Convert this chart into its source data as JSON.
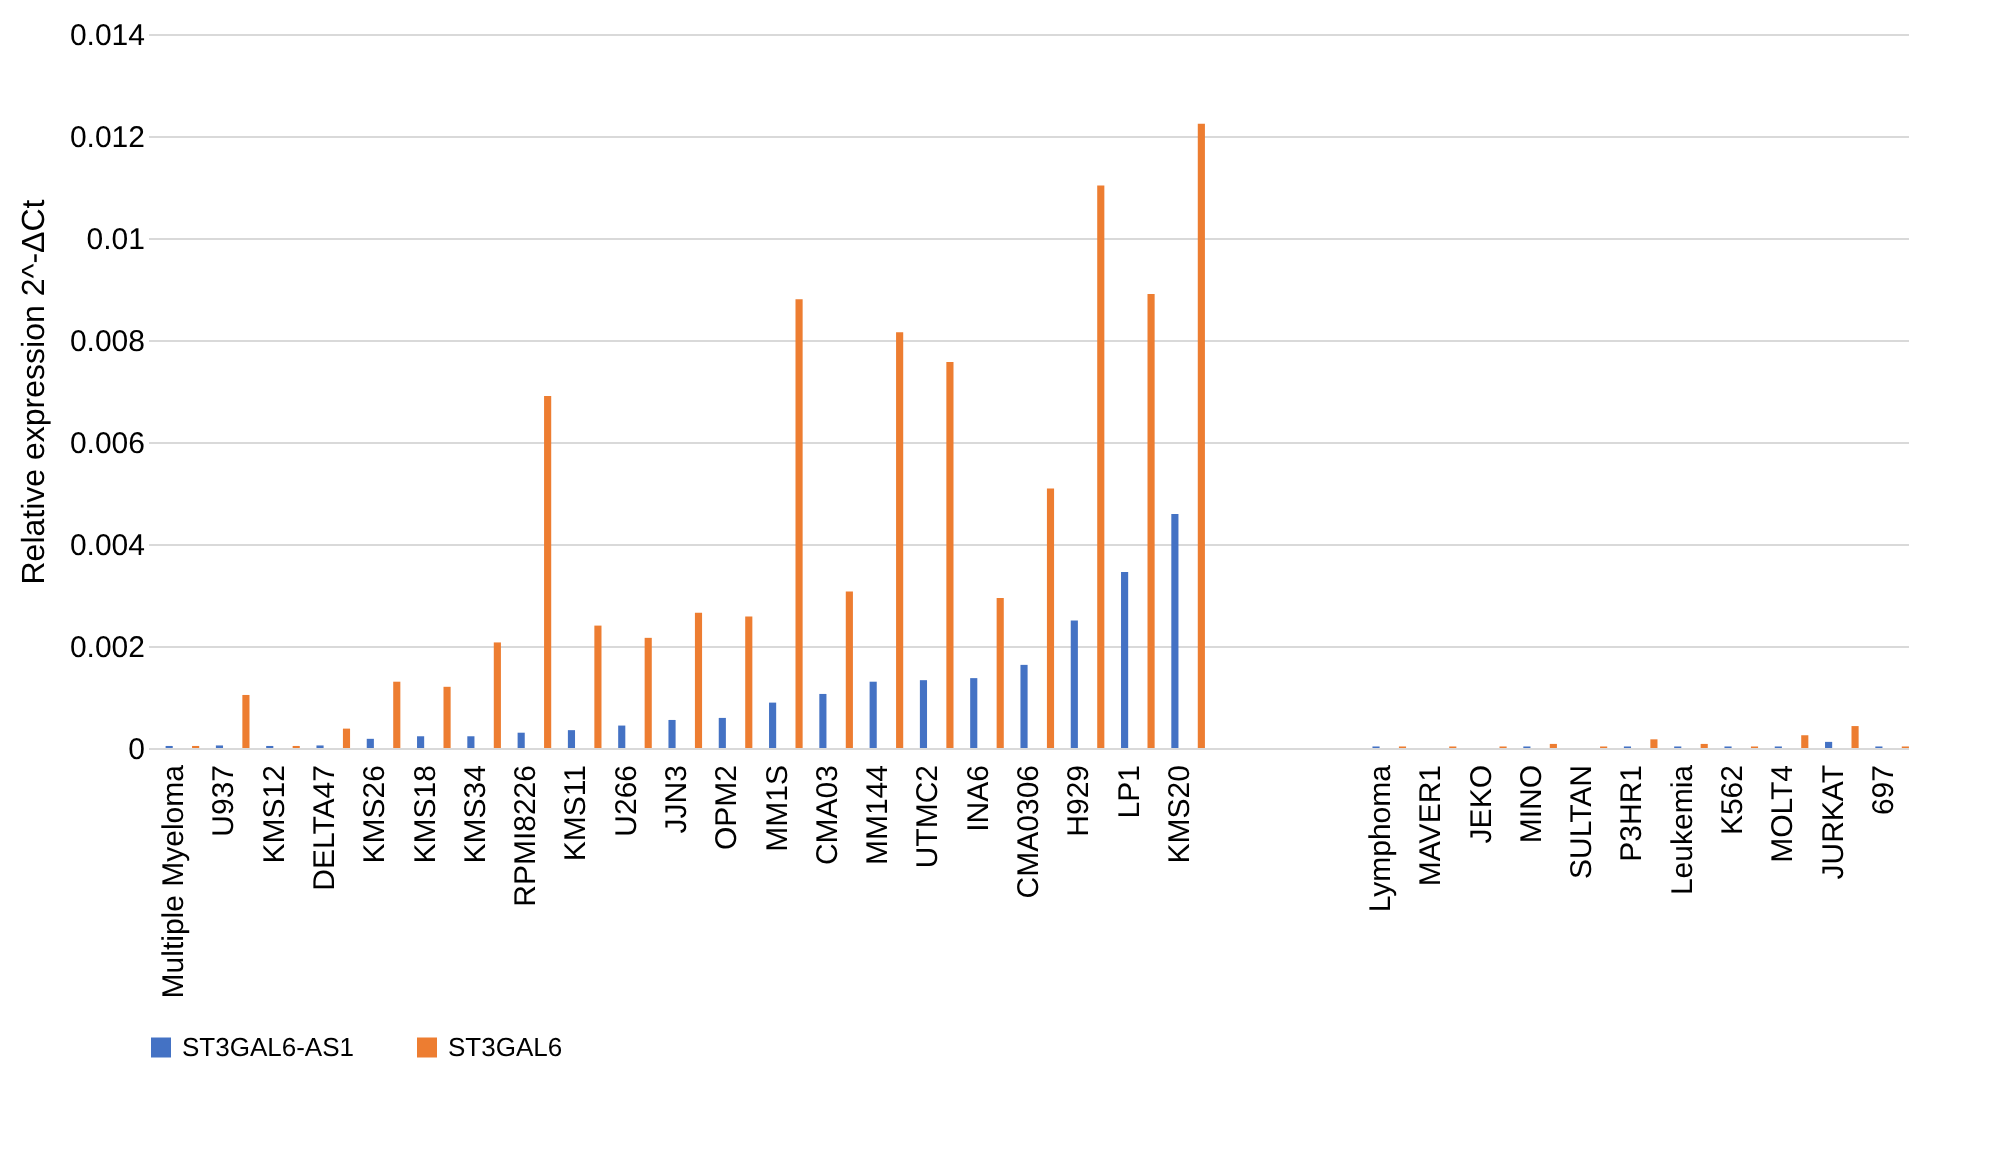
{
  "chart_data": {
    "type": "bar",
    "ylabel": "Relative expression 2^-ΔCt",
    "categories": [
      "Multiple Myeloma",
      "U937",
      "KMS12",
      "DELTA47",
      "KMS26",
      "KMS18",
      "KMS34",
      "RPMI8226",
      "KMS11",
      "U266",
      "JJN3",
      "OPM2",
      "MM1S",
      "CMA03",
      "MM144",
      "UTMC2",
      "INA6",
      "CMA0306",
      "H929",
      "LP1",
      "KMS20",
      null,
      null,
      null,
      "Lymphoma",
      "MAVER1",
      "JEKO",
      "MINO",
      "SULTAN",
      "P3HR1",
      "Leukemia",
      "K562",
      "MOLT4",
      "JURKAT",
      "697"
    ],
    "series": [
      {
        "name": "ST3GAL6-AS1",
        "color": "#4472c4",
        "values": [
          4e-05,
          5e-05,
          4e-05,
          5e-05,
          0.00018,
          0.00023,
          0.00023,
          0.0003,
          0.00035,
          0.00044,
          0.00055,
          0.00059,
          0.00089,
          0.00106,
          0.0013,
          0.00133,
          0.00137,
          0.00163,
          0.0025,
          0.00345,
          0.00459,
          null,
          null,
          null,
          3e-05,
          0,
          0,
          3e-05,
          0,
          3e-05,
          3e-05,
          3e-05,
          3e-05,
          0.00012,
          3e-05
        ]
      },
      {
        "name": "ST3GAL6",
        "color": "#ed7d31",
        "values": [
          4e-05,
          0.00104,
          4e-05,
          0.00038,
          0.0013,
          0.0012,
          0.00207,
          0.0069,
          0.0024,
          0.00216,
          0.00265,
          0.00258,
          0.0088,
          0.00307,
          0.00815,
          0.00757,
          0.00294,
          0.00509,
          0.01103,
          0.0089,
          0.01224,
          null,
          null,
          null,
          3e-05,
          3e-05,
          3e-05,
          8e-05,
          3e-05,
          0.00017,
          8e-05,
          3e-05,
          0.00025,
          0.00043,
          3e-05
        ]
      }
    ],
    "ylim": [
      0,
      0.014
    ],
    "yticks": [
      0,
      0.002,
      0.004,
      0.006,
      0.008,
      0.01,
      0.012,
      0.014
    ],
    "grid": "y",
    "legend": "bottom"
  }
}
